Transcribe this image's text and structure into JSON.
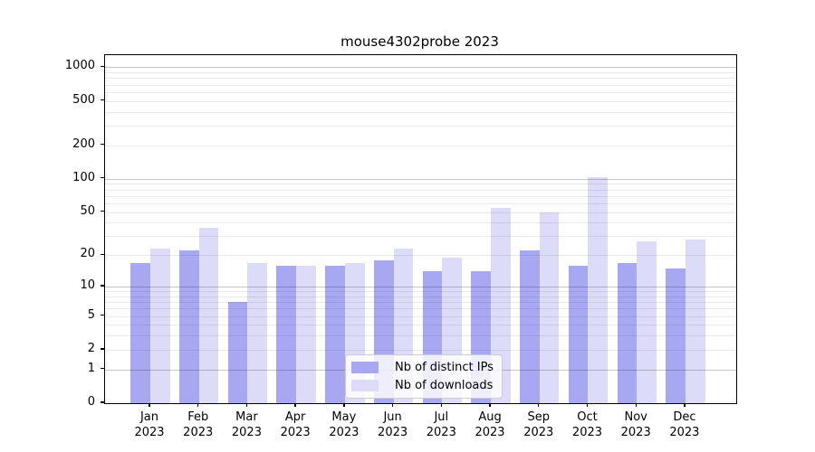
{
  "chart_data": {
    "type": "bar",
    "title": "mouse4302probe 2023",
    "scale": "log1p",
    "grid": "horizontal",
    "ylim": [
      0,
      1250
    ],
    "y_ticks": [
      0,
      1,
      2,
      5,
      10,
      20,
      50,
      100,
      200,
      500,
      1000
    ],
    "categories": [
      "Jan",
      "Feb",
      "Mar",
      "Apr",
      "May",
      "Jun",
      "Jul",
      "Aug",
      "Sep",
      "Oct",
      "Nov",
      "Dec"
    ],
    "year": "2023",
    "series": [
      {
        "name": "Nb of distinct IPs",
        "color": "#a8a8f2",
        "values": [
          17,
          22,
          7,
          16,
          16,
          18,
          14,
          14,
          22,
          16,
          17,
          15
        ]
      },
      {
        "name": "Nb of downloads",
        "color": "#dcdcf8",
        "values": [
          23,
          36,
          17,
          16,
          17,
          23,
          19,
          55,
          50,
          103,
          27,
          28
        ]
      }
    ],
    "legend_position": "bottom-center",
    "colors": {
      "spine": "#000000",
      "major_grid": "#c8c8c8",
      "minor_grid": "#e9e9e9",
      "background": "#ffffff"
    }
  }
}
